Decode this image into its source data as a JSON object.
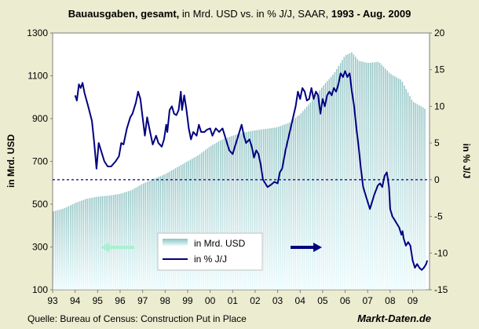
{
  "colors": {
    "background": "#ecedd0",
    "plot_background": "#ffffff",
    "bar_top": "#8fc2c2",
    "bar_bottom": "#e9fbfd",
    "line": "#000080",
    "zero_line": "#000080",
    "left_arrow": "#a9f0d1",
    "right_arrow": "#000080"
  },
  "chart_data": {
    "type": "bar+line",
    "title": {
      "part1": "Bauausgaben, gesamt,",
      "part2": " in Mrd. USD vs. in % J/J, SAAR, ",
      "part3": "1993 - Aug. 2009"
    },
    "ylabel_left": "in Mrd. USD",
    "ylabel_right": "in % J/J",
    "ylim_left": [
      100,
      1300
    ],
    "ylim_right": [
      -15,
      20
    ],
    "yticks_left": [
      "1300",
      "1100",
      "900",
      "700",
      "500",
      "300",
      "100"
    ],
    "yticks_right": [
      "20",
      "15",
      "10",
      "5",
      "0",
      "-5",
      "-10",
      "-15"
    ],
    "xticks": [
      "93",
      "94",
      "95",
      "96",
      "97",
      "98",
      "99",
      "00",
      "01",
      "02",
      "03",
      "04",
      "05",
      "06",
      "07",
      "08",
      "09"
    ],
    "x_start_year": 1993,
    "legend": {
      "bars": "in Mrd. USD",
      "line": "in % J/J"
    },
    "series": [
      {
        "name": "in Mrd. USD",
        "kind": "bar",
        "axis": "left",
        "points": [
          [
            1993.0,
            465
          ],
          [
            1993.5,
            480
          ],
          [
            1994.0,
            505
          ],
          [
            1994.5,
            525
          ],
          [
            1995.0,
            535
          ],
          [
            1995.5,
            540
          ],
          [
            1996.0,
            548
          ],
          [
            1996.5,
            565
          ],
          [
            1997.0,
            595
          ],
          [
            1997.5,
            618
          ],
          [
            1998.0,
            640
          ],
          [
            1998.5,
            670
          ],
          [
            1999.0,
            700
          ],
          [
            1999.5,
            730
          ],
          [
            2000.0,
            770
          ],
          [
            2000.5,
            800
          ],
          [
            2001.0,
            820
          ],
          [
            2001.5,
            835
          ],
          [
            2002.0,
            845
          ],
          [
            2002.5,
            852
          ],
          [
            2003.0,
            860
          ],
          [
            2003.5,
            880
          ],
          [
            2004.0,
            920
          ],
          [
            2004.5,
            980
          ],
          [
            2005.0,
            1050
          ],
          [
            2005.5,
            1110
          ],
          [
            2006.0,
            1195
          ],
          [
            2006.3,
            1210
          ],
          [
            2006.6,
            1170
          ],
          [
            2007.0,
            1160
          ],
          [
            2007.5,
            1165
          ],
          [
            2008.0,
            1110
          ],
          [
            2008.5,
            1080
          ],
          [
            2009.0,
            980
          ],
          [
            2009.5,
            950
          ],
          [
            2009.6,
            940
          ]
        ]
      },
      {
        "name": "in % J/J",
        "kind": "line",
        "axis": "right",
        "points": [
          [
            1994.0,
            11.5
          ],
          [
            1994.08,
            10.8
          ],
          [
            1994.17,
            13.0
          ],
          [
            1994.25,
            12.5
          ],
          [
            1994.33,
            13.2
          ],
          [
            1994.42,
            11.8
          ],
          [
            1994.58,
            10.0
          ],
          [
            1994.75,
            8.0
          ],
          [
            1994.85,
            5.0
          ],
          [
            1994.95,
            1.5
          ],
          [
            1995.05,
            5.0
          ],
          [
            1995.15,
            4.0
          ],
          [
            1995.3,
            2.5
          ],
          [
            1995.45,
            1.8
          ],
          [
            1995.6,
            1.8
          ],
          [
            1995.8,
            2.5
          ],
          [
            1995.95,
            3.2
          ],
          [
            1996.05,
            5.0
          ],
          [
            1996.15,
            4.8
          ],
          [
            1996.3,
            7.0
          ],
          [
            1996.45,
            8.5
          ],
          [
            1996.55,
            9.0
          ],
          [
            1996.7,
            10.5
          ],
          [
            1996.8,
            12.0
          ],
          [
            1996.9,
            11.0
          ],
          [
            1997.0,
            8.5
          ],
          [
            1997.1,
            6.0
          ],
          [
            1997.2,
            8.5
          ],
          [
            1997.3,
            7.0
          ],
          [
            1997.45,
            4.8
          ],
          [
            1997.6,
            6.0
          ],
          [
            1997.7,
            5.0
          ],
          [
            1997.85,
            4.5
          ],
          [
            1997.95,
            5.5
          ],
          [
            1998.05,
            7.5
          ],
          [
            1998.1,
            6.5
          ],
          [
            1998.2,
            9.5
          ],
          [
            1998.3,
            10.0
          ],
          [
            1998.4,
            9.0
          ],
          [
            1998.5,
            8.8
          ],
          [
            1998.6,
            9.5
          ],
          [
            1998.7,
            12.0
          ],
          [
            1998.75,
            9.5
          ],
          [
            1998.85,
            11.5
          ],
          [
            1998.95,
            9.5
          ],
          [
            1999.05,
            7.0
          ],
          [
            1999.15,
            5.5
          ],
          [
            1999.25,
            6.5
          ],
          [
            1999.4,
            6.0
          ],
          [
            1999.5,
            7.5
          ],
          [
            1999.6,
            6.5
          ],
          [
            1999.75,
            6.5
          ],
          [
            1999.85,
            6.8
          ],
          [
            2000.0,
            7.0
          ],
          [
            2000.1,
            6.0
          ],
          [
            2000.25,
            7.0
          ],
          [
            2000.4,
            6.5
          ],
          [
            2000.55,
            7.0
          ],
          [
            2000.7,
            5.5
          ],
          [
            2000.85,
            4.0
          ],
          [
            2001.0,
            3.5
          ],
          [
            2001.1,
            4.5
          ],
          [
            2001.2,
            5.5
          ],
          [
            2001.3,
            6.5
          ],
          [
            2001.4,
            7.5
          ],
          [
            2001.5,
            6.0
          ],
          [
            2001.6,
            5.0
          ],
          [
            2001.75,
            5.5
          ],
          [
            2001.85,
            4.5
          ],
          [
            2001.95,
            3.0
          ],
          [
            2002.05,
            4.0
          ],
          [
            2002.15,
            3.5
          ],
          [
            2002.25,
            2.0
          ],
          [
            2002.35,
            0.0
          ],
          [
            2002.45,
            -0.5
          ],
          [
            2002.55,
            -1.0
          ],
          [
            2002.7,
            -0.7
          ],
          [
            2002.85,
            -0.3
          ],
          [
            2003.0,
            -0.5
          ],
          [
            2003.1,
            1.0
          ],
          [
            2003.2,
            1.5
          ],
          [
            2003.35,
            4.0
          ],
          [
            2003.5,
            6.0
          ],
          [
            2003.65,
            8.0
          ],
          [
            2003.8,
            10.0
          ],
          [
            2003.9,
            12.0
          ],
          [
            2004.0,
            11.0
          ],
          [
            2004.1,
            12.5
          ],
          [
            2004.2,
            12.0
          ],
          [
            2004.3,
            10.8
          ],
          [
            2004.4,
            11.0
          ],
          [
            2004.5,
            12.5
          ],
          [
            2004.6,
            11.0
          ],
          [
            2004.7,
            12.0
          ],
          [
            2004.8,
            11.5
          ],
          [
            2004.9,
            9.0
          ],
          [
            2005.0,
            11.0
          ],
          [
            2005.1,
            10.0
          ],
          [
            2005.2,
            11.5
          ],
          [
            2005.3,
            12.0
          ],
          [
            2005.4,
            11.5
          ],
          [
            2005.5,
            12.5
          ],
          [
            2005.6,
            12.0
          ],
          [
            2005.7,
            13.0
          ],
          [
            2005.8,
            14.5
          ],
          [
            2005.9,
            14.0
          ],
          [
            2006.0,
            14.8
          ],
          [
            2006.1,
            14.0
          ],
          [
            2006.2,
            14.5
          ],
          [
            2006.3,
            12.0
          ],
          [
            2006.4,
            10.0
          ],
          [
            2006.5,
            7.0
          ],
          [
            2006.6,
            4.5
          ],
          [
            2006.7,
            1.5
          ],
          [
            2006.8,
            -1.0
          ],
          [
            2006.9,
            -2.0
          ],
          [
            2007.0,
            -3.0
          ],
          [
            2007.1,
            -4.0
          ],
          [
            2007.2,
            -3.0
          ],
          [
            2007.3,
            -2.0
          ],
          [
            2007.45,
            -0.8
          ],
          [
            2007.55,
            -0.5
          ],
          [
            2007.65,
            -1.0
          ],
          [
            2007.75,
            0.5
          ],
          [
            2007.85,
            1.0
          ],
          [
            2007.95,
            -1.0
          ],
          [
            2008.0,
            -4.0
          ],
          [
            2008.1,
            -5.0
          ],
          [
            2008.2,
            -5.5
          ],
          [
            2008.3,
            -6.0
          ],
          [
            2008.4,
            -6.5
          ],
          [
            2008.5,
            -7.5
          ],
          [
            2008.55,
            -7.0
          ],
          [
            2008.6,
            -8.0
          ],
          [
            2008.7,
            -9.0
          ],
          [
            2008.8,
            -8.5
          ],
          [
            2008.9,
            -9.0
          ],
          [
            2009.0,
            -11.0
          ],
          [
            2009.1,
            -12.0
          ],
          [
            2009.2,
            -11.5
          ],
          [
            2009.3,
            -12.0
          ],
          [
            2009.4,
            -12.3
          ],
          [
            2009.5,
            -12.0
          ],
          [
            2009.6,
            -11.5
          ],
          [
            2009.65,
            -11.0
          ]
        ]
      }
    ],
    "zero_line": {
      "axis": "right",
      "value": 0,
      "style": "dashed"
    }
  },
  "footer": {
    "source": "Quelle: Bureau of Census: Construction Put in Place",
    "brand": "Markt-Daten.de"
  }
}
